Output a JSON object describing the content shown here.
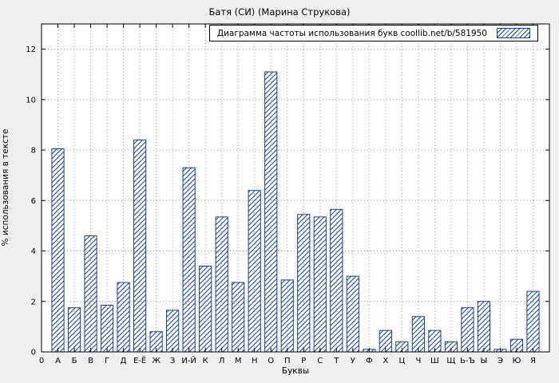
{
  "colors": {
    "background": "#f0f0f0",
    "plot_background": "#ffffff",
    "bar_outline": "#16418c",
    "hatch": "#16418c",
    "grid": "#999999",
    "axis": "#000000",
    "text": "#000000"
  },
  "chart_data": {
    "type": "bar",
    "title": "Батя (СИ) (Марина Струкова)",
    "xlabel": "Буквы",
    "ylabel": "% использования в тексте",
    "legend_label": "Диаграмма частоты использования букв coollib.net/b/581950",
    "legend_position": "top-right",
    "grid": true,
    "hatch_pattern": "diagonal",
    "ylim": [
      0,
      13
    ],
    "y_ticks": [
      0,
      2,
      4,
      6,
      8,
      10,
      12
    ],
    "x_tick_labels": [
      "0",
      "А",
      "Б",
      "В",
      "Г",
      "Д",
      "Е-Ё",
      "Ж",
      "З",
      "И-Й",
      "К",
      "Л",
      "М",
      "Н",
      "О",
      "П",
      "Р",
      "С",
      "Т",
      "У",
      "Ф",
      "Х",
      "Ц",
      "Ч",
      "Ш",
      "Щ",
      "Ь-Ъ",
      "Ы",
      "Э",
      "Ю",
      "Я"
    ],
    "categories": [
      "А",
      "Б",
      "В",
      "Г",
      "Д",
      "Е-Ё",
      "Ж",
      "З",
      "И-Й",
      "К",
      "Л",
      "М",
      "Н",
      "О",
      "П",
      "Р",
      "С",
      "Т",
      "У",
      "Ф",
      "Х",
      "Ц",
      "Ч",
      "Ш",
      "Щ",
      "Ь-Ъ",
      "Ы",
      "Э",
      "Ю",
      "Я"
    ],
    "values": [
      8.05,
      1.75,
      4.6,
      1.85,
      2.75,
      8.4,
      0.8,
      1.65,
      7.3,
      3.4,
      5.35,
      2.75,
      6.4,
      11.1,
      2.85,
      5.45,
      5.35,
      5.65,
      3.0,
      0.1,
      0.85,
      0.4,
      1.4,
      0.85,
      0.4,
      1.75,
      2.0,
      0.1,
      0.5,
      2.4
    ]
  }
}
